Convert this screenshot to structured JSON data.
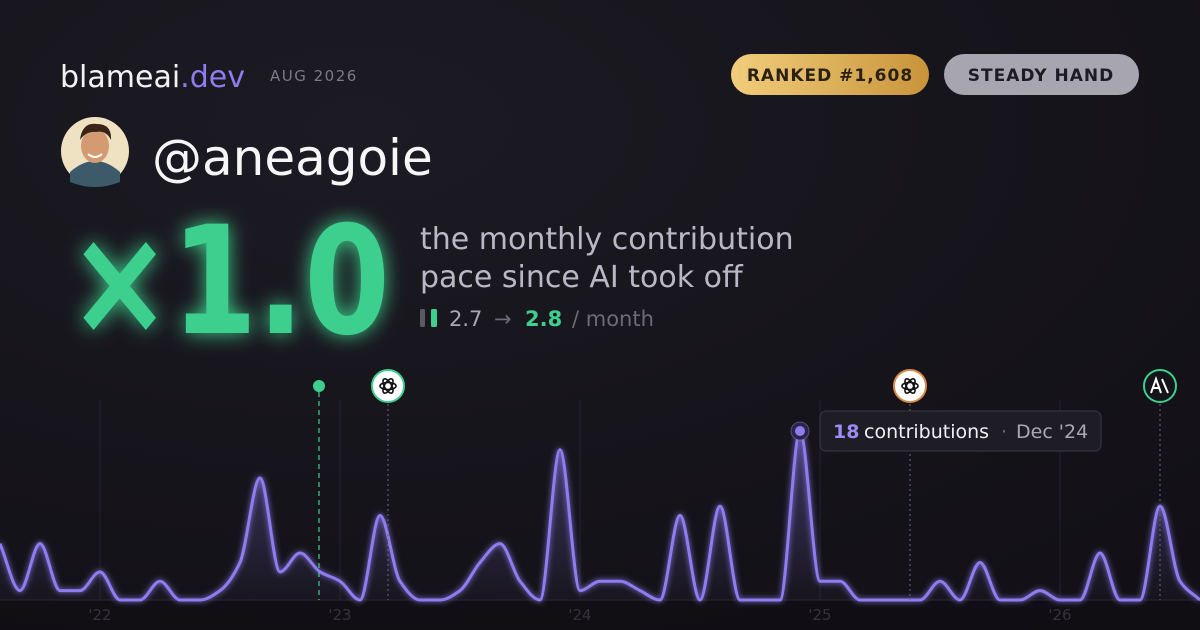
{
  "header": {
    "brand": "blameai",
    "brand_suffix": ".dev",
    "period": "AUG 2026",
    "badges": [
      "RANKED #1,608",
      "STEADY HAND"
    ]
  },
  "profile": {
    "handle": "@aneagoie"
  },
  "headline": {
    "multiplier": "×1.0",
    "description_lines": [
      "the monthly contribution",
      "pace since AI took off"
    ],
    "before": "2.7",
    "arrow": "→",
    "after": "2.8",
    "unit": "/ month"
  },
  "tooltip": {
    "label": "contributions",
    "separator": "·",
    "date": "Dec '24"
  },
  "chart_data": {
    "type": "line",
    "categories": [
      null,
      null,
      null,
      null,
      null,
      "'22",
      null,
      null,
      null,
      null,
      null,
      null,
      null,
      null,
      null,
      null,
      null,
      "'23",
      null,
      null,
      null,
      null,
      null,
      null,
      null,
      null,
      null,
      null,
      null,
      "'24",
      null,
      null,
      null,
      null,
      null,
      null,
      null,
      null,
      null,
      null,
      null,
      "'25",
      null,
      null,
      null,
      null,
      null,
      null,
      null,
      null,
      null,
      null,
      null,
      "'26",
      null,
      null,
      null,
      null,
      null,
      null,
      null
    ],
    "series": [
      {
        "name": "contributions",
        "color": "#8f7cf0",
        "values": [
          6,
          1,
          6,
          1,
          1,
          3,
          0,
          0,
          2,
          0,
          0,
          1,
          4,
          13,
          3,
          5,
          3,
          2,
          0,
          9,
          2,
          0,
          0,
          1,
          4,
          6,
          2,
          0,
          16,
          1,
          2,
          2,
          1,
          0,
          9,
          0,
          10,
          0,
          0,
          0,
          18,
          2,
          2,
          0,
          0,
          0,
          0,
          2,
          0,
          4,
          0,
          0,
          1,
          0,
          0,
          5,
          0,
          0,
          10,
          2,
          0
        ]
      }
    ],
    "ylim": [
      0,
      18
    ],
    "grid": true
  }
}
